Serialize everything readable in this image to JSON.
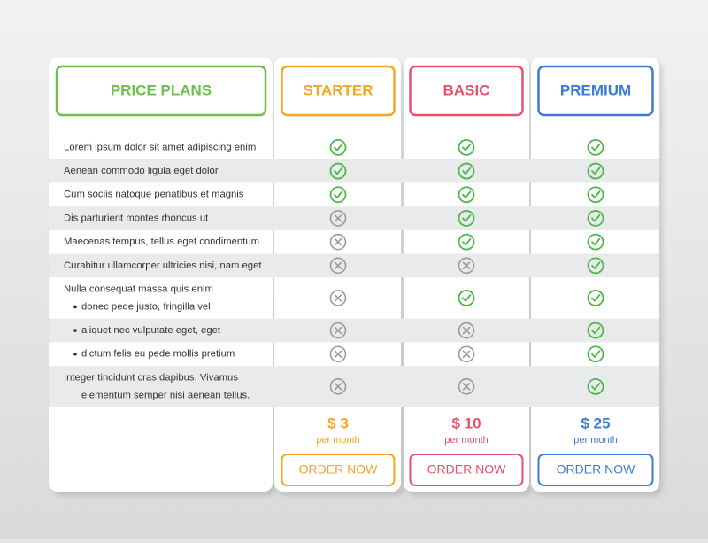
{
  "header": {
    "title": "PRICE PLANS",
    "color": "#6cc04a"
  },
  "plans": [
    {
      "name": "STARTER",
      "color": "#f5a623",
      "price": "$ 3",
      "period": "per month",
      "button": "ORDER NOW"
    },
    {
      "name": "BASIC",
      "color": "#e8506c",
      "price": "$ 10",
      "period": "per month",
      "button": "ORDER NOW"
    },
    {
      "name": "PREMIUM",
      "color": "#3d7bd9",
      "price": "$ 25",
      "period": "per month",
      "button": "ORDER NOW"
    }
  ],
  "features": [
    {
      "lines": [
        {
          "text": "Lorem ipsum dolor sit amet adipiscing enim"
        }
      ],
      "included": [
        true,
        true,
        true
      ]
    },
    {
      "lines": [
        {
          "text": "Aenean commodo ligula eget dolor"
        }
      ],
      "included": [
        true,
        true,
        true
      ]
    },
    {
      "lines": [
        {
          "text": "Cum sociis natoque penatibus et magnis"
        }
      ],
      "included": [
        true,
        true,
        true
      ]
    },
    {
      "lines": [
        {
          "text": "Dis parturient montes rhoncus ut"
        }
      ],
      "included": [
        false,
        true,
        true
      ]
    },
    {
      "lines": [
        {
          "text": "Maecenas tempus, tellus eget condimentum"
        }
      ],
      "included": [
        false,
        true,
        true
      ]
    },
    {
      "lines": [
        {
          "text": "Curabitur ullamcorper ultricies nisi, nam eget"
        }
      ],
      "included": [
        false,
        false,
        true
      ]
    },
    {
      "lines": [
        {
          "text": "Nulla consequat massa quis enim"
        },
        {
          "text": "donec pede justo, fringilla vel",
          "bullet": true
        }
      ],
      "included": [
        false,
        true,
        true
      ]
    },
    {
      "lines": [
        {
          "text": "aliquet nec vulputate eget, eget",
          "bullet": true
        }
      ],
      "included": [
        false,
        false,
        true
      ]
    },
    {
      "lines": [
        {
          "text": "dictum felis eu pede mollis pretium",
          "bullet": true
        }
      ],
      "included": [
        false,
        false,
        true
      ]
    },
    {
      "lines": [
        {
          "text": "Integer tincidunt cras dapibus. Vivamus"
        },
        {
          "text": "elementum semper nisi aenean tellus.",
          "indent": true
        }
      ],
      "included": [
        false,
        false,
        true
      ]
    }
  ]
}
